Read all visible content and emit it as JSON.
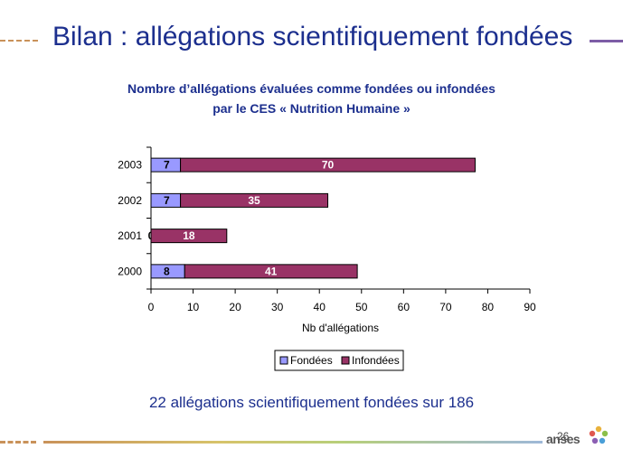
{
  "slide": {
    "title": "Bilan : allégations scientifiquement fondées",
    "subtitle_line1": "Nombre d’allégations évaluées comme fondées ou infondées",
    "subtitle_line2": "par le CES « Nutrition Humaine »",
    "summary": "22 allégations scientifiquement fondées sur 186",
    "page_number": "26",
    "brand": "anses"
  },
  "chart_data": {
    "type": "bar",
    "orientation": "horizontal",
    "stacked": true,
    "categories": [
      "2003",
      "2002",
      "2001",
      "2000"
    ],
    "series": [
      {
        "name": "Fondées",
        "values": [
          7,
          7,
          0,
          8
        ],
        "color": "#9999ff"
      },
      {
        "name": "Infondées",
        "values": [
          70,
          35,
          18,
          41
        ],
        "color": "#993366"
      }
    ],
    "xlabel": "Nb d'allégations",
    "ylabel": "",
    "xlim": [
      0,
      90
    ],
    "xticks": [
      0,
      10,
      20,
      30,
      40,
      50,
      60,
      70,
      80,
      90
    ],
    "grid": false,
    "legend": "bottom"
  }
}
